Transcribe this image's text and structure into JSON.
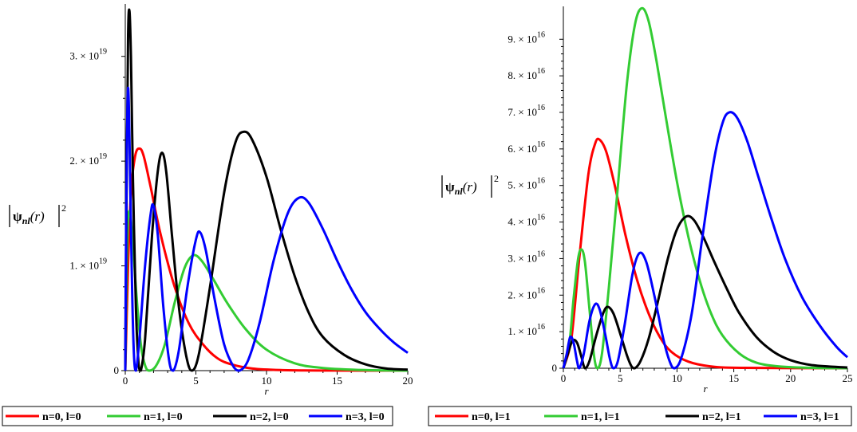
{
  "chart_data": [
    {
      "type": "line",
      "xlabel": "r",
      "ylabel": "|ψnl(r)|²",
      "xlim": [
        0,
        20
      ],
      "ylim": [
        0,
        3.5e+19
      ],
      "x_ticks": [
        0,
        5,
        10,
        15,
        20
      ],
      "x_tick_labels": [
        "0",
        "5",
        "10",
        "15",
        "20"
      ],
      "y_ticks": [
        {
          "value": 0,
          "mantissa": "0",
          "exponent": ""
        },
        {
          "value": 1e+19,
          "mantissa": "1. × 10",
          "exponent": "19"
        },
        {
          "value": 2e+19,
          "mantissa": "2. × 10",
          "exponent": "19"
        },
        {
          "value": 3e+19,
          "mantissa": "3. × 10",
          "exponent": "19"
        }
      ],
      "grid": false,
      "legend_position": "bottom",
      "series": [
        {
          "name": "n=0, l=0",
          "color": "#ff0000",
          "points": [
            [
              0,
              0
            ],
            [
              0.2,
              1e+19
            ],
            [
              0.4,
              1.7e+19
            ],
            [
              0.7,
              2.05e+19
            ],
            [
              1.0,
              2.12e+19
            ],
            [
              1.3,
              2.05e+19
            ],
            [
              1.8,
              1.75e+19
            ],
            [
              2.5,
              1.3e+19
            ],
            [
              3.5,
              8e+18
            ],
            [
              4.5,
              4.5e+18
            ],
            [
              5.5,
              2.5e+18
            ],
            [
              6.5,
              1.2e+18
            ],
            [
              7.5,
              6e+17
            ],
            [
              9,
              2e+17
            ],
            [
              11,
              5e+16
            ],
            [
              14,
              1e+16
            ],
            [
              20,
              0
            ]
          ]
        },
        {
          "name": "n=1, l=0",
          "color": "#33cc33",
          "points": [
            [
              0,
              0
            ],
            [
              0.1,
              1e+19
            ],
            [
              0.2,
              1.45e+19
            ],
            [
              0.35,
              1.5e+19
            ],
            [
              0.55,
              1.2e+19
            ],
            [
              0.8,
              7e+18
            ],
            [
              1.1,
              2.5e+18
            ],
            [
              1.4,
              5e+17
            ],
            [
              1.7,
              0
            ],
            [
              2.2,
              5e+17
            ],
            [
              2.8,
              2.5e+18
            ],
            [
              3.5,
              6.5e+18
            ],
            [
              4.2,
              9.8e+18
            ],
            [
              4.8,
              1.1e+19
            ],
            [
              5.4,
              1.05e+19
            ],
            [
              6.2,
              8.8e+18
            ],
            [
              7.2,
              6.5e+18
            ],
            [
              8.5,
              4e+18
            ],
            [
              10,
              2e+18
            ],
            [
              12,
              7e+17
            ],
            [
              14,
              2.5e+17
            ],
            [
              17,
              5e+16
            ],
            [
              20,
              0
            ]
          ]
        },
        {
          "name": "n=2, l=0",
          "color": "#000000",
          "points": [
            [
              0,
              0
            ],
            [
              0.1,
              1.8e+19
            ],
            [
              0.2,
              3.2e+19
            ],
            [
              0.3,
              3.43e+19
            ],
            [
              0.4,
              3e+19
            ],
            [
              0.55,
              1.8e+19
            ],
            [
              0.75,
              6e+18
            ],
            [
              0.95,
              5e+17
            ],
            [
              1.1,
              0
            ],
            [
              1.4,
              3e+18
            ],
            [
              1.9,
              1.3e+19
            ],
            [
              2.3,
              1.9e+19
            ],
            [
              2.6,
              2.08e+19
            ],
            [
              2.9,
              1.9e+19
            ],
            [
              3.3,
              1.3e+19
            ],
            [
              3.8,
              6e+18
            ],
            [
              4.3,
              1.5e+18
            ],
            [
              4.7,
              0
            ],
            [
              5.2,
              1.5e+18
            ],
            [
              6.0,
              8e+18
            ],
            [
              7.0,
              1.7e+19
            ],
            [
              7.8,
              2.18e+19
            ],
            [
              8.4,
              2.28e+19
            ],
            [
              9.0,
              2.2e+19
            ],
            [
              10,
              1.85e+19
            ],
            [
              11,
              1.35e+19
            ],
            [
              12,
              9e+18
            ],
            [
              13,
              5.5e+18
            ],
            [
              14,
              3.2e+18
            ],
            [
              15.5,
              1.5e+18
            ],
            [
              17,
              6e+17
            ],
            [
              18.5,
              2e+17
            ],
            [
              20,
              1e+17
            ]
          ]
        },
        {
          "name": "n=3, l=0",
          "color": "#0000ff",
          "points": [
            [
              0,
              0
            ],
            [
              0.05,
              1.2e+19
            ],
            [
              0.12,
              2.2e+19
            ],
            [
              0.2,
              2.7e+19
            ],
            [
              0.3,
              2.2e+19
            ],
            [
              0.45,
              1e+19
            ],
            [
              0.6,
              2e+18
            ],
            [
              0.75,
              0
            ],
            [
              1.0,
              3e+18
            ],
            [
              1.4,
              1e+19
            ],
            [
              1.8,
              1.5e+19
            ],
            [
              2.0,
              1.57e+19
            ],
            [
              2.3,
              1.3e+19
            ],
            [
              2.7,
              6e+18
            ],
            [
              3.1,
              1e+18
            ],
            [
              3.4,
              0
            ],
            [
              3.8,
              2e+18
            ],
            [
              4.4,
              8e+18
            ],
            [
              5.0,
              1.25e+19
            ],
            [
              5.3,
              1.32e+19
            ],
            [
              5.7,
              1.15e+19
            ],
            [
              6.3,
              7e+18
            ],
            [
              7.0,
              2.5e+18
            ],
            [
              7.7,
              3e+17
            ],
            [
              8.1,
              0
            ],
            [
              8.7,
              1e+18
            ],
            [
              9.5,
              4.5e+18
            ],
            [
              10.5,
              1.05e+19
            ],
            [
              11.5,
              1.5e+19
            ],
            [
              12.3,
              1.65e+19
            ],
            [
              13,
              1.6e+19
            ],
            [
              14,
              1.35e+19
            ],
            [
              15,
              1.05e+19
            ],
            [
              16,
              7.8e+18
            ],
            [
              17,
              5.6e+18
            ],
            [
              18,
              4e+18
            ],
            [
              19,
              2.7e+18
            ],
            [
              20,
              1.7e+18
            ]
          ]
        }
      ]
    },
    {
      "type": "line",
      "xlabel": "r",
      "ylabel": "|ψnl(r)|²",
      "xlim": [
        0,
        25
      ],
      "ylim": [
        0,
        9.9e+16
      ],
      "x_ticks": [
        0,
        5,
        10,
        15,
        20,
        25
      ],
      "x_tick_labels": [
        "0",
        "5",
        "10",
        "15",
        "20",
        "25"
      ],
      "y_ticks": [
        {
          "value": 0,
          "mantissa": "0",
          "exponent": ""
        },
        {
          "value": 1e+16,
          "mantissa": "1. × 10",
          "exponent": "16"
        },
        {
          "value": 2e+16,
          "mantissa": "2. × 10",
          "exponent": "16"
        },
        {
          "value": 3e+16,
          "mantissa": "3. × 10",
          "exponent": "16"
        },
        {
          "value": 4e+16,
          "mantissa": "4. × 10",
          "exponent": "16"
        },
        {
          "value": 5e+16,
          "mantissa": "5. × 10",
          "exponent": "16"
        },
        {
          "value": 6e+16,
          "mantissa": "6. × 10",
          "exponent": "16"
        },
        {
          "value": 7e+16,
          "mantissa": "7. × 10",
          "exponent": "16"
        },
        {
          "value": 8e+16,
          "mantissa": "8. × 10",
          "exponent": "16"
        },
        {
          "value": 9e+16,
          "mantissa": "9. × 10",
          "exponent": "16"
        }
      ],
      "grid": false,
      "legend_position": "bottom",
      "series": [
        {
          "name": "n=0, l=1",
          "color": "#ff0000",
          "points": [
            [
              0,
              0
            ],
            [
              0.7,
              8000000000000000.0
            ],
            [
              1.4,
              3e+16
            ],
            [
              2.2,
              5.3e+16
            ],
            [
              2.8,
              6.15e+16
            ],
            [
              3.2,
              6.25e+16
            ],
            [
              3.8,
              5.9e+16
            ],
            [
              4.6,
              4.9e+16
            ],
            [
              5.5,
              3.6e+16
            ],
            [
              6.5,
              2.4e+16
            ],
            [
              7.5,
              1.5e+16
            ],
            [
              8.5,
              8500000000000000.0
            ],
            [
              9.5,
              4500000000000000.0
            ],
            [
              11,
              1800000000000000.0
            ],
            [
              13,
              500000000000000.0
            ],
            [
              16,
              100000000000000.0
            ],
            [
              25,
              0
            ]
          ]
        },
        {
          "name": "n=1, l=1",
          "color": "#33cc33",
          "points": [
            [
              0,
              0
            ],
            [
              0.5,
              6000000000000000.0
            ],
            [
              0.9,
              1.9e+16
            ],
            [
              1.3,
              3e+16
            ],
            [
              1.6,
              3.25e+16
            ],
            [
              1.9,
              2.9e+16
            ],
            [
              2.3,
              1.6e+16
            ],
            [
              2.7,
              3500000000000000.0
            ],
            [
              3.0,
              0
            ],
            [
              3.4,
              4000000000000000.0
            ],
            [
              4.0,
              2.2e+16
            ],
            [
              4.8,
              5e+16
            ],
            [
              5.6,
              7.8e+16
            ],
            [
              6.3,
              9.4e+16
            ],
            [
              6.9,
              9.85e+16
            ],
            [
              7.5,
              9.5e+16
            ],
            [
              8.2,
              8.4e+16
            ],
            [
              9.0,
              6.9e+16
            ],
            [
              10,
              5.1e+16
            ],
            [
              11,
              3.6e+16
            ],
            [
              12,
              2.4e+16
            ],
            [
              13,
              1.5e+16
            ],
            [
              14,
              9000000000000000.0
            ],
            [
              15.5,
              4000000000000000.0
            ],
            [
              17,
              1500000000000000.0
            ],
            [
              19,
              500000000000000.0
            ],
            [
              22,
              100000000000000.0
            ],
            [
              25,
              0
            ]
          ]
        },
        {
          "name": "n=2, l=1",
          "color": "#000000",
          "points": [
            [
              0,
              0
            ],
            [
              0.4,
              4000000000000000.0
            ],
            [
              0.8,
              7500000000000000.0
            ],
            [
              1.2,
              7000000000000000.0
            ],
            [
              1.6,
              3000000000000000.0
            ],
            [
              1.9,
              0
            ],
            [
              2.3,
              2000000000000000.0
            ],
            [
              2.9,
              9000000000000000.0
            ],
            [
              3.5,
              1.5e+16
            ],
            [
              3.9,
              1.68e+16
            ],
            [
              4.4,
              1.5e+16
            ],
            [
              5.0,
              9500000000000000.0
            ],
            [
              5.6,
              3500000000000000.0
            ],
            [
              6.0,
              500000000000000.0
            ],
            [
              6.3,
              0
            ],
            [
              6.8,
              2000000000000000.0
            ],
            [
              7.5,
              8000000000000000.0
            ],
            [
              8.3,
              1.8e+16
            ],
            [
              9.2,
              3e+16
            ],
            [
              10,
              3.8e+16
            ],
            [
              10.8,
              4.15e+16
            ],
            [
              11.5,
              4.05e+16
            ],
            [
              12.3,
              3.6e+16
            ],
            [
              13.3,
              2.9e+16
            ],
            [
              14.5,
              2.1e+16
            ],
            [
              15.5,
              1.5e+16
            ],
            [
              17,
              8500000000000000.0
            ],
            [
              18.5,
              4500000000000000.0
            ],
            [
              20,
              2200000000000000.0
            ],
            [
              22,
              800000000000000.0
            ],
            [
              25,
              200000000000000.0
            ]
          ]
        },
        {
          "name": "n=3, l=1",
          "color": "#0000ff",
          "points": [
            [
              0,
              0
            ],
            [
              0.3,
              4000000000000000.0
            ],
            [
              0.6,
              8500000000000000.0
            ],
            [
              0.9,
              7000000000000000.0
            ],
            [
              1.2,
              2000000000000000.0
            ],
            [
              1.4,
              0
            ],
            [
              1.8,
              4000000000000000.0
            ],
            [
              2.3,
              1.3e+16
            ],
            [
              2.8,
              1.75e+16
            ],
            [
              3.2,
              1.6e+16
            ],
            [
              3.7,
              9000000000000000.0
            ],
            [
              4.1,
              2500000000000000.0
            ],
            [
              4.4,
              0
            ],
            [
              4.8,
              2000000000000000.0
            ],
            [
              5.4,
              1.2e+16
            ],
            [
              6.1,
              2.6e+16
            ],
            [
              6.7,
              3.15e+16
            ],
            [
              7.3,
              2.9e+16
            ],
            [
              8.0,
              2e+16
            ],
            [
              8.8,
              8000000000000000.0
            ],
            [
              9.4,
              1500000000000000.0
            ],
            [
              9.8,
              0
            ],
            [
              10.4,
              3000000000000000.0
            ],
            [
              11.3,
              1.5e+16
            ],
            [
              12.2,
              3.5e+16
            ],
            [
              13.2,
              5.6e+16
            ],
            [
              14.0,
              6.7e+16
            ],
            [
              14.6,
              7e+16
            ],
            [
              15.3,
              6.85e+16
            ],
            [
              16.2,
              6.2e+16
            ],
            [
              17.2,
              5.2e+16
            ],
            [
              18.3,
              4.1e+16
            ],
            [
              19.5,
              3e+16
            ],
            [
              21,
              1.95e+16
            ],
            [
              22.5,
              1.2e+16
            ],
            [
              24,
              6000000000000000.0
            ],
            [
              25,
              3000000000000000.0
            ]
          ]
        }
      ]
    }
  ]
}
